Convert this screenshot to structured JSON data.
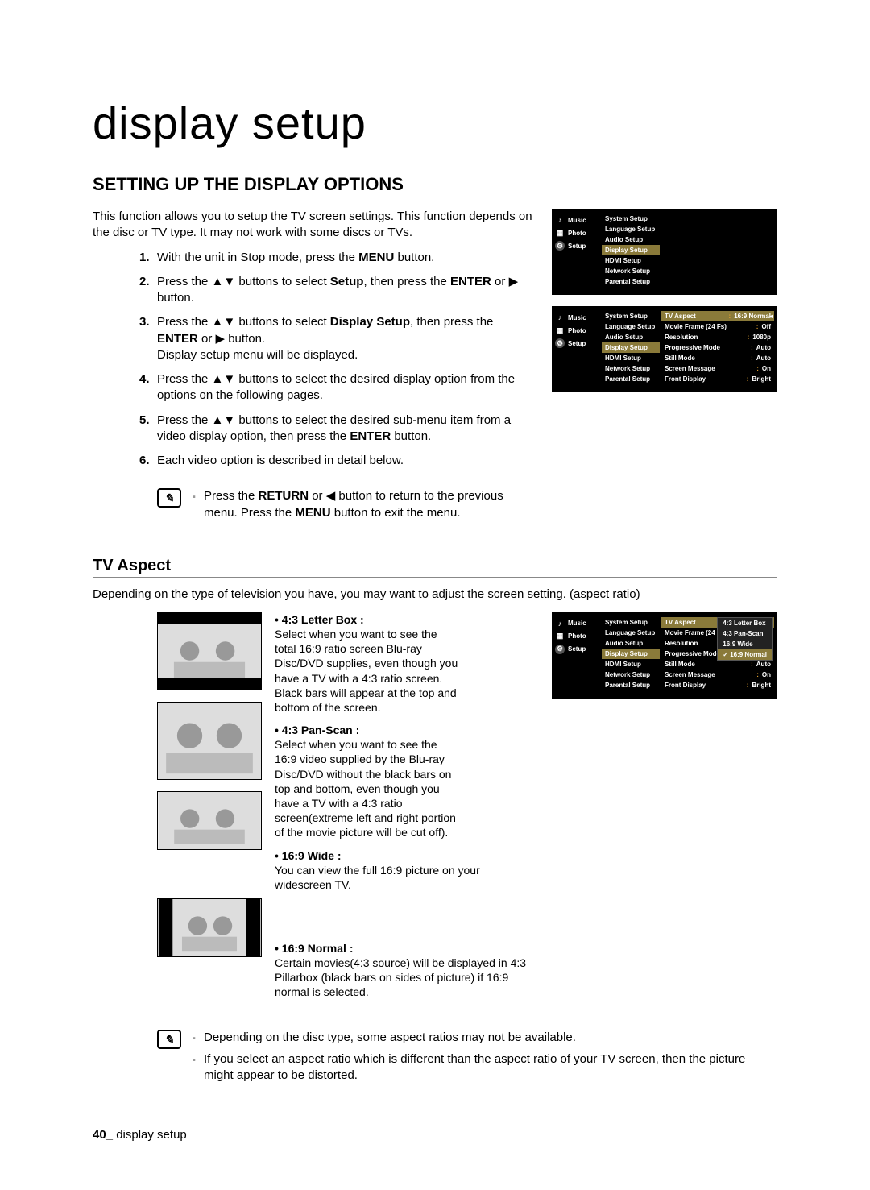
{
  "page_title": "display setup",
  "section_heading": "SETTING UP THE DISPLAY OPTIONS",
  "intro": "This function allows you to setup the TV screen settings. This function depends on the disc or TV type. It may not work with some discs or TVs.",
  "steps": [
    "With the unit in Stop mode, press the <b>MENU</b> button.",
    "Press the ▲▼ buttons to select <b>Setup</b>, then press the <b>ENTER</b> or ▶ button.",
    "Press the ▲▼ buttons to select <b>Display Setup</b>, then press the <b>ENTER</b> or ▶ button.<br>Display setup menu will be displayed.",
    "Press the ▲▼ buttons to select the desired display option from the options on the following pages.",
    "Press the ▲▼ buttons to select the desired sub-menu item from a video display option, then press the <b>ENTER</b> button.",
    "Each video option is described in detail below."
  ],
  "note1": "Press the <b>RETURN</b> or ◀ button to return to the previous menu. Press the <b>MENU</b> button to exit the menu.",
  "sub_heading": "TV Aspect",
  "sub_intro": "Depending on the type of television you have, you may want to adjust the screen setting. (aspect ratio)",
  "aspects": [
    {
      "label": "• 4:3 Letter Box :",
      "desc": "Select when you want to see the total 16:9 ratio screen Blu-ray Disc/DVD supplies, even though you have a TV with a 4:3 ratio screen. Black bars will appear at the top and bottom of the screen."
    },
    {
      "label": "• 4:3 Pan-Scan :",
      "desc": "Select when you want to see the 16:9 video supplied by the Blu-ray Disc/DVD without the black bars on top and bottom, even though you have a TV with a 4:3 ratio screen(extreme left and right portion of the movie picture will be cut off)."
    },
    {
      "label": "• 16:9 Wide :",
      "desc": "You can view the full 16:9 picture on your widescreen TV."
    },
    {
      "label": "• 16:9 Normal :",
      "desc": "Certain movies(4:3 source) will be displayed in 4:3 Pillarbox (black bars on sides of picture) if 16:9 normal is selected."
    }
  ],
  "notes2": [
    "Depending on the disc type, some aspect ratios may not be available.",
    "If you select an aspect ratio which is different than the aspect ratio of your TV screen, then the picture might appear to be distorted."
  ],
  "footer_page": "40_",
  "footer_text": " display setup",
  "tv_nav": [
    "Music",
    "Photo",
    "Setup"
  ],
  "tv_setup_menu": [
    "System Setup",
    "Language Setup",
    "Audio Setup",
    "Display Setup",
    "HDMI Setup",
    "Network Setup",
    "Parental Setup"
  ],
  "tv_display_rows": [
    {
      "k": "TV Aspect",
      "v": "16:9 Normal",
      "hl": true
    },
    {
      "k": "Movie Frame (24 Fs)",
      "v": "Off"
    },
    {
      "k": "Resolution",
      "v": "1080p"
    },
    {
      "k": "Progressive Mode",
      "v": "Auto"
    },
    {
      "k": "Still Mode",
      "v": "Auto"
    },
    {
      "k": "Screen Message",
      "v": "On"
    },
    {
      "k": "Front Display",
      "v": "Bright"
    }
  ],
  "tv_aspect_popup": [
    "4:3 Letter Box",
    "4:3 Pan-Scan",
    "16:9 Wide",
    "16:9 Normal"
  ],
  "tv_aspect_popup_sel": "16:9 Normal"
}
